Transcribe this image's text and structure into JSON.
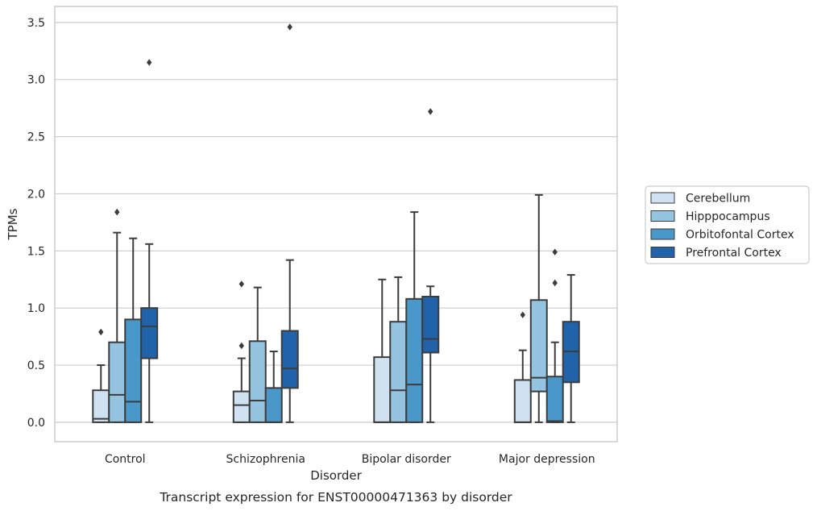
{
  "chart_data": {
    "type": "box",
    "caption": "Transcript expression for ENST00000471363 by disorder",
    "xlabel": "Disorder",
    "ylabel": "TPMs",
    "ylim": [
      -0.17,
      3.64
    ],
    "yticks": [
      "0.0",
      "0.5",
      "1.0",
      "1.5",
      "2.0",
      "2.5",
      "3.0",
      "3.5"
    ],
    "grid": "horizontal",
    "legend_position": "right",
    "categories": [
      "Control",
      "Schizophrenia",
      "Bipolar disorder",
      "Major depression"
    ],
    "series": [
      {
        "name": "Cerebellum",
        "color": "#d0e1f2",
        "boxes": [
          {
            "whislo": 0.0,
            "q1": 0.0,
            "med": 0.03,
            "q3": 0.28,
            "whishi": 0.5,
            "fliers": [
              0.79
            ]
          },
          {
            "whislo": 0.0,
            "q1": 0.0,
            "med": 0.15,
            "q3": 0.27,
            "whishi": 0.56,
            "fliers": [
              0.67,
              1.21
            ]
          },
          {
            "whislo": 0.0,
            "q1": 0.0,
            "med": 0.0,
            "q3": 0.57,
            "whishi": 1.25,
            "fliers": []
          },
          {
            "whislo": 0.0,
            "q1": 0.0,
            "med": 0.0,
            "q3": 0.37,
            "whishi": 0.63,
            "fliers": [
              0.94
            ]
          }
        ]
      },
      {
        "name": "Hipppocampus",
        "color": "#94c4df",
        "boxes": [
          {
            "whislo": 0.0,
            "q1": 0.0,
            "med": 0.24,
            "q3": 0.7,
            "whishi": 1.66,
            "fliers": [
              1.84
            ]
          },
          {
            "whislo": 0.0,
            "q1": 0.0,
            "med": 0.19,
            "q3": 0.71,
            "whishi": 1.18,
            "fliers": []
          },
          {
            "whislo": 0.0,
            "q1": 0.0,
            "med": 0.28,
            "q3": 0.88,
            "whishi": 1.27,
            "fliers": []
          },
          {
            "whislo": 0.0,
            "q1": 0.27,
            "med": 0.39,
            "q3": 1.07,
            "whishi": 1.99,
            "fliers": []
          }
        ]
      },
      {
        "name": "Orbitofontal Cortex",
        "color": "#4a98c9",
        "boxes": [
          {
            "whislo": 0.0,
            "q1": 0.0,
            "med": 0.18,
            "q3": 0.9,
            "whishi": 1.61,
            "fliers": []
          },
          {
            "whislo": 0.0,
            "q1": 0.0,
            "med": 0.0,
            "q3": 0.3,
            "whishi": 0.62,
            "fliers": []
          },
          {
            "whislo": 0.0,
            "q1": 0.0,
            "med": 0.33,
            "q3": 1.08,
            "whishi": 1.84,
            "fliers": []
          },
          {
            "whislo": 0.0,
            "q1": 0.0,
            "med": 0.01,
            "q3": 0.4,
            "whishi": 0.7,
            "fliers": [
              1.22,
              1.49
            ]
          }
        ]
      },
      {
        "name": "Prefrontal Cortex",
        "color": "#2163aa",
        "boxes": [
          {
            "whislo": 0.0,
            "q1": 0.56,
            "med": 0.84,
            "q3": 1.0,
            "whishi": 1.56,
            "fliers": [
              3.15
            ]
          },
          {
            "whislo": 0.0,
            "q1": 0.3,
            "med": 0.47,
            "q3": 0.8,
            "whishi": 1.42,
            "fliers": [
              3.46
            ]
          },
          {
            "whislo": 0.0,
            "q1": 0.61,
            "med": 0.73,
            "q3": 1.1,
            "whishi": 1.19,
            "fliers": [
              2.72
            ]
          },
          {
            "whislo": 0.0,
            "q1": 0.35,
            "med": 0.62,
            "q3": 0.88,
            "whishi": 1.29,
            "fliers": []
          }
        ]
      }
    ]
  }
}
